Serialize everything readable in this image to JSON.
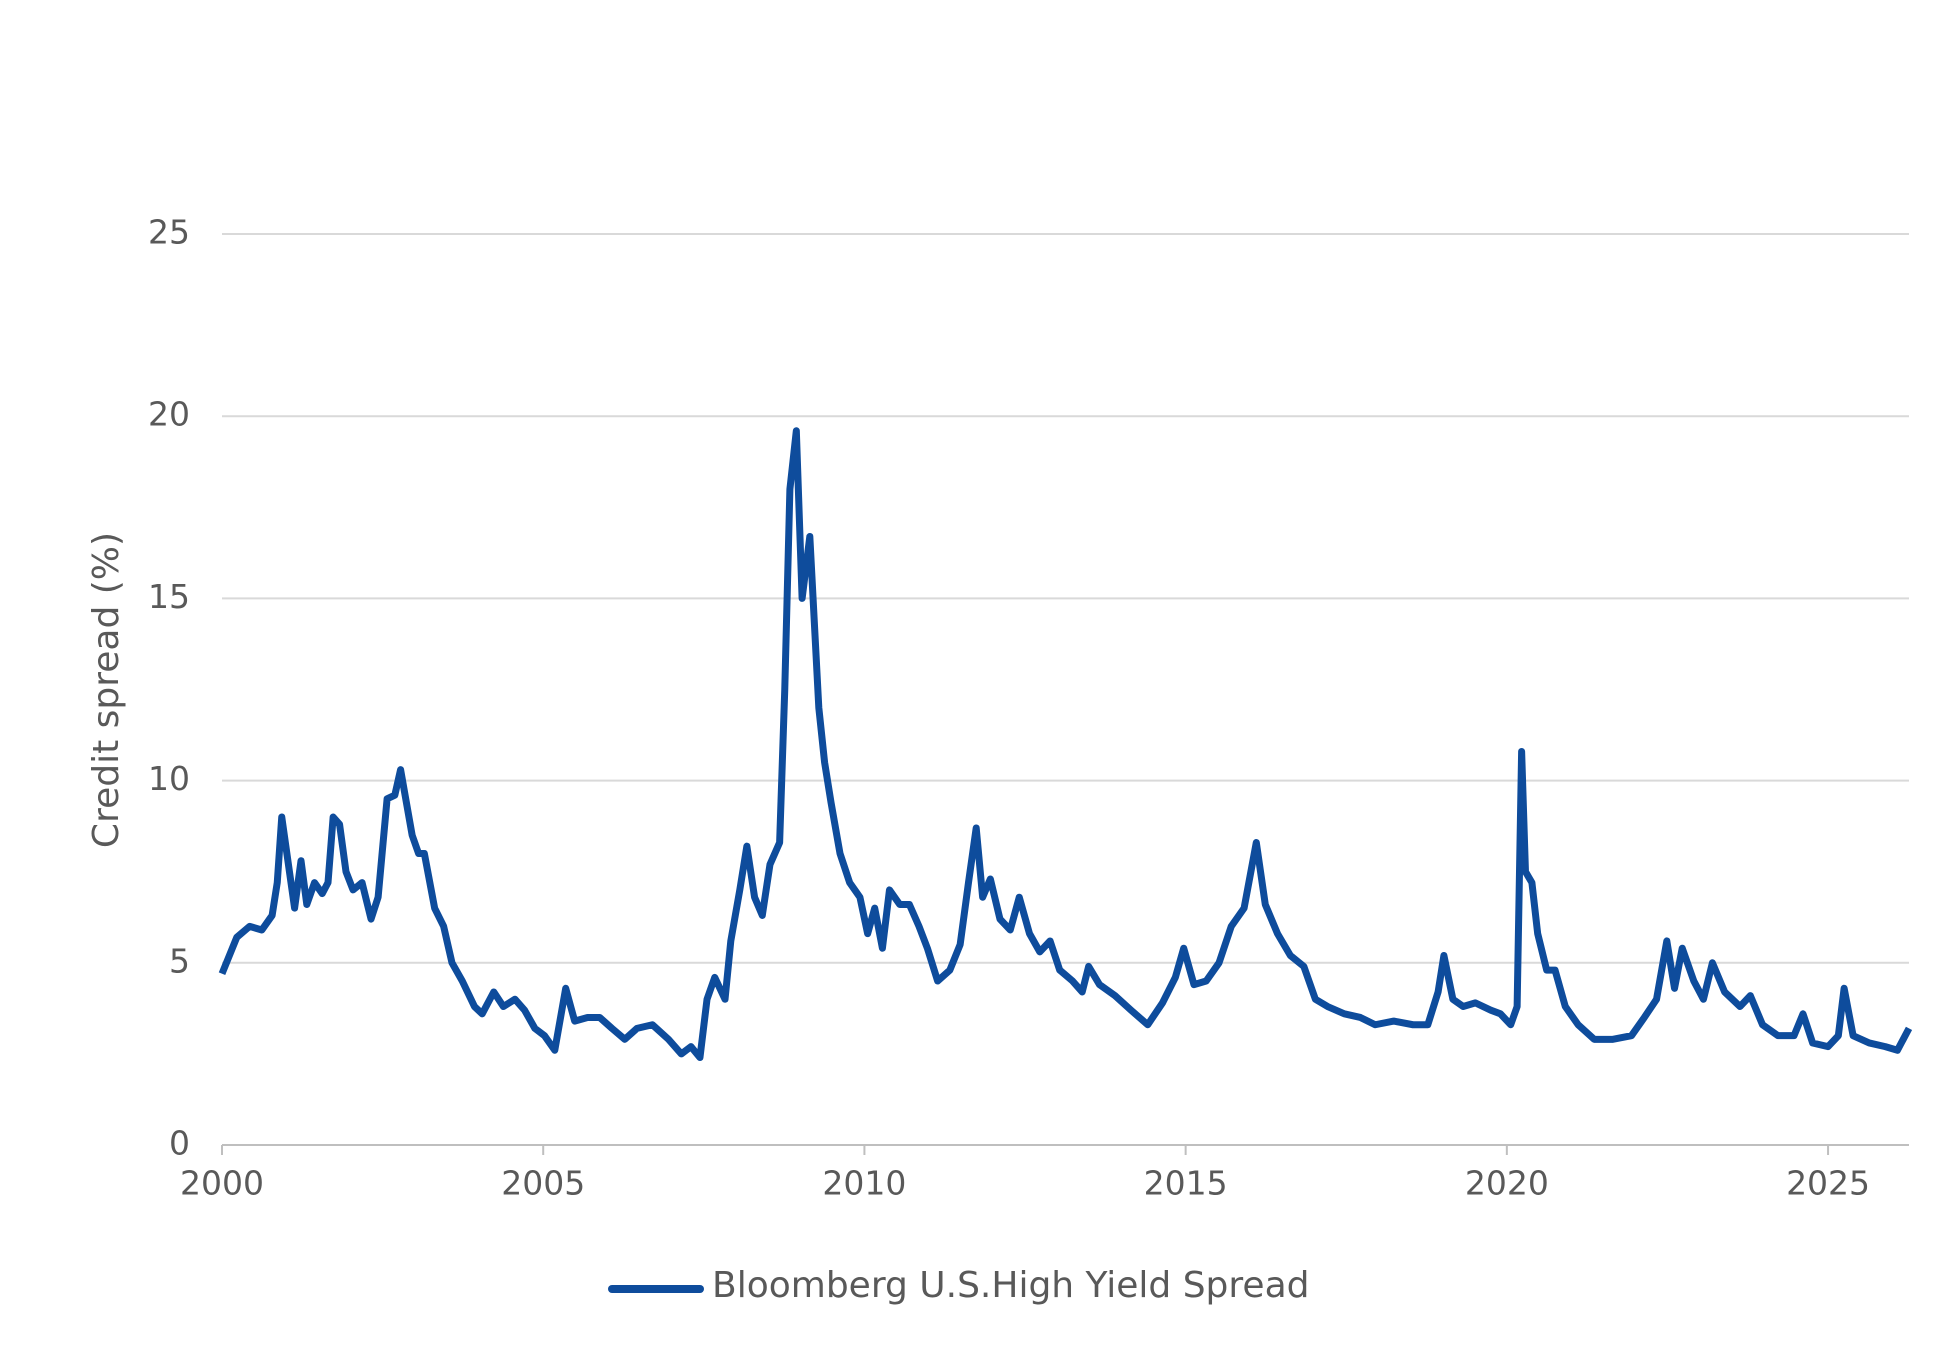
{
  "chart_data": {
    "type": "line",
    "y_label": "Credit spread (%)",
    "x": [
      2000.0,
      2000.23,
      2000.43,
      2000.62,
      2000.78,
      2000.86,
      2000.93,
      2001.05,
      2001.13,
      2001.23,
      2001.32,
      2001.44,
      2001.56,
      2001.65,
      2001.73,
      2001.83,
      2001.93,
      2002.04,
      2002.18,
      2002.32,
      2002.43,
      2002.57,
      2002.69,
      2002.78,
      2002.86,
      2002.96,
      2003.06,
      2003.15,
      2003.31,
      2003.45,
      2003.58,
      2003.74,
      2003.93,
      2004.05,
      2004.23,
      2004.38,
      2004.56,
      2004.71,
      2004.87,
      2005.02,
      2005.18,
      2005.35,
      2005.49,
      2005.69,
      2005.88,
      2006.07,
      2006.27,
      2006.46,
      2006.7,
      2006.95,
      2007.15,
      2007.3,
      2007.44,
      2007.55,
      2007.67,
      2007.83,
      2007.92,
      2008.06,
      2008.17,
      2008.29,
      2008.41,
      2008.53,
      2008.68,
      2008.76,
      2008.84,
      2008.94,
      2009.03,
      2009.15,
      2009.29,
      2009.38,
      2009.48,
      2009.62,
      2009.77,
      2009.93,
      2010.05,
      2010.16,
      2010.28,
      2010.39,
      2010.55,
      2010.7,
      2010.85,
      2010.98,
      2011.14,
      2011.33,
      2011.49,
      2011.62,
      2011.74,
      2011.84,
      2011.96,
      2012.11,
      2012.27,
      2012.41,
      2012.57,
      2012.73,
      2012.89,
      2013.04,
      2013.24,
      2013.39,
      2013.49,
      2013.66,
      2013.9,
      2014.15,
      2014.41,
      2014.64,
      2014.84,
      2014.97,
      2015.13,
      2015.32,
      2015.52,
      2015.71,
      2015.91,
      2016.1,
      2016.24,
      2016.43,
      2016.63,
      2016.84,
      2017.02,
      2017.21,
      2017.47,
      2017.72,
      2017.95,
      2018.24,
      2018.54,
      2018.77,
      2018.93,
      2019.02,
      2019.16,
      2019.32,
      2019.51,
      2019.75,
      2019.9,
      2020.06,
      2020.16,
      2020.23,
      2020.29,
      2020.39,
      2020.48,
      2020.62,
      2020.75,
      2020.91,
      2021.11,
      2021.36,
      2021.65,
      2021.94,
      2022.14,
      2022.33,
      2022.49,
      2022.61,
      2022.73,
      2022.91,
      2023.06,
      2023.2,
      2023.39,
      2023.63,
      2023.79,
      2023.98,
      2024.22,
      2024.47,
      2024.61,
      2024.76,
      2025.0,
      2025.16,
      2025.25,
      2025.39,
      2025.64,
      2025.89,
      2026.08,
      2026.26
    ],
    "series": [
      {
        "name": "Bloomberg U.S.High Yield Spread",
        "color": "#0e4c9c",
        "values": [
          4.7,
          5.7,
          6.0,
          5.9,
          6.3,
          7.2,
          9.0,
          7.5,
          6.5,
          7.8,
          6.6,
          7.2,
          6.9,
          7.2,
          9.0,
          8.8,
          7.5,
          7.0,
          7.2,
          6.2,
          6.8,
          9.5,
          9.6,
          10.3,
          9.5,
          8.5,
          8.0,
          8.0,
          6.5,
          6.0,
          5.0,
          4.5,
          3.8,
          3.6,
          4.2,
          3.8,
          4.0,
          3.7,
          3.2,
          3.0,
          2.6,
          4.3,
          3.4,
          3.5,
          3.5,
          3.2,
          2.9,
          3.2,
          3.3,
          2.9,
          2.5,
          2.7,
          2.4,
          4.0,
          4.6,
          4.0,
          5.6,
          7.0,
          8.2,
          6.8,
          6.3,
          7.7,
          8.3,
          12.5,
          18.0,
          19.6,
          15.0,
          16.7,
          12.0,
          10.5,
          9.4,
          8.0,
          7.2,
          6.8,
          5.8,
          6.5,
          5.4,
          7.0,
          6.6,
          6.6,
          6.0,
          5.4,
          4.5,
          4.8,
          5.5,
          7.2,
          8.7,
          6.8,
          7.3,
          6.2,
          5.9,
          6.8,
          5.8,
          5.3,
          5.6,
          4.8,
          4.5,
          4.2,
          4.9,
          4.4,
          4.1,
          3.7,
          3.3,
          3.9,
          4.6,
          5.4,
          4.4,
          4.5,
          5.0,
          6.0,
          6.5,
          8.3,
          6.6,
          5.8,
          5.2,
          4.9,
          4.0,
          3.8,
          3.6,
          3.5,
          3.3,
          3.4,
          3.3,
          3.3,
          4.2,
          5.2,
          4.0,
          3.8,
          3.9,
          3.7,
          3.6,
          3.3,
          3.8,
          10.8,
          7.5,
          7.2,
          5.8,
          4.8,
          4.8,
          3.8,
          3.3,
          2.9,
          2.9,
          3.0,
          3.5,
          4.0,
          5.6,
          4.3,
          5.4,
          4.5,
          4.0,
          5.0,
          4.2,
          3.8,
          4.1,
          3.3,
          3.0,
          3.0,
          3.6,
          2.8,
          2.7,
          3.0,
          4.3,
          3.0,
          2.8,
          2.7,
          2.6,
          3.2
        ]
      }
    ],
    "xlim": [
      2000,
      2026.26
    ],
    "xticks": [
      2000,
      2005,
      2010,
      2015,
      2020,
      2025
    ],
    "ylim": [
      0,
      25
    ],
    "yticks": [
      0,
      5,
      10,
      15,
      20,
      25
    ],
    "grid": true
  }
}
